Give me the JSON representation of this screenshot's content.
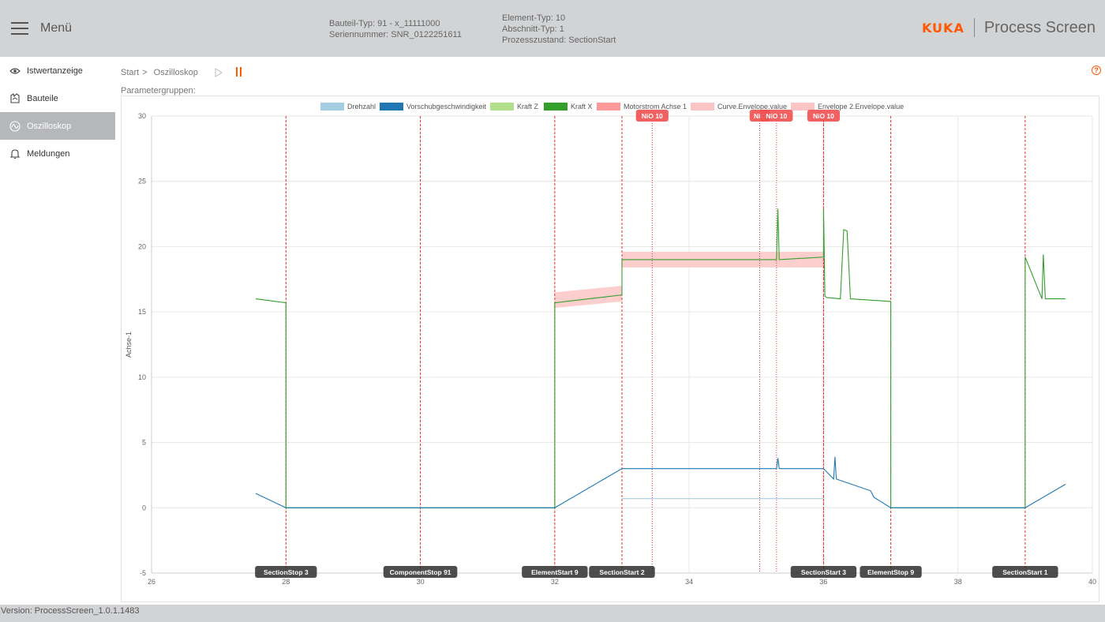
{
  "header": {
    "menu_label": "Menü",
    "info_left": [
      "Bauteil-Typ: 91 - x_11111000",
      "Seriennummer: SNR_0122251611"
    ],
    "info_right": [
      "Element-Typ: 10",
      "Abschnitt-Typ: 1",
      "Prozesszustand: SectionStart"
    ],
    "brand": "KUKA",
    "app_title": "Process Screen"
  },
  "sidebar": {
    "items": [
      {
        "label": "Istwertanzeige",
        "icon": "eye-icon",
        "active": false
      },
      {
        "label": "Bauteile",
        "icon": "part-icon",
        "active": false
      },
      {
        "label": "Oszilloskop",
        "icon": "oscilloscope-icon",
        "active": true
      },
      {
        "label": "Meldungen",
        "icon": "bell-icon",
        "active": false
      }
    ]
  },
  "breadcrumb": {
    "start": "Start",
    "separator": ">",
    "current": "Oszilloskop"
  },
  "param_groups_label": "Parametergruppen:",
  "help_icon": "?",
  "footer": {
    "version": "Version: ProcessScreen_1.0.1.1483"
  },
  "colors": {
    "accent": "#ff5800",
    "header_bg": "#d2d3d5",
    "sidebar_active": "#b6b7ba"
  },
  "chart_data": {
    "type": "line",
    "title": "",
    "xlabel": "",
    "ylabel": "Achse-1",
    "xlim": [
      26,
      40
    ],
    "ylim": [
      -5,
      30
    ],
    "x_ticks": [
      26,
      28,
      30,
      32,
      34,
      36,
      38,
      40
    ],
    "y_ticks": [
      -5,
      0,
      5,
      10,
      15,
      20,
      25,
      30
    ],
    "grid": true,
    "legend_position": "top",
    "legend": [
      {
        "name": "Drehzahl",
        "color": "#a6cee3"
      },
      {
        "name": "Vorschubgeschwindigkeit",
        "color": "#1f78b4"
      },
      {
        "name": "Kraft Z",
        "color": "#b2df8a"
      },
      {
        "name": "Kraft X",
        "color": "#33a02c"
      },
      {
        "name": "Motorstrom Achse 1",
        "color": "#fb9a99"
      },
      {
        "name": "Curve.Envelope.value",
        "color": "#fcc5c5"
      },
      {
        "name": "Envelope 2.Envelope.value",
        "color": "#fcc5c5"
      }
    ],
    "series": [
      {
        "name": "Kraft X",
        "color": "#33a02c",
        "x": [
          27.55,
          28.0,
          28.0,
          32.0,
          32.0,
          33.0,
          33.0,
          35.3,
          35.32,
          35.34,
          36.0,
          36.0,
          36.02,
          36.05,
          36.25,
          36.3,
          36.35,
          36.4,
          37.0,
          37.0,
          39.0,
          39.0,
          39.25,
          39.27,
          39.3,
          39.6
        ],
        "y": [
          16.0,
          15.7,
          0,
          0,
          15.7,
          16.3,
          19.0,
          19.0,
          22.9,
          19.0,
          19.2,
          22.9,
          16.2,
          16.1,
          16.0,
          21.3,
          21.2,
          16.0,
          15.8,
          0,
          0,
          19.2,
          16.0,
          19.4,
          16.0,
          16.0
        ]
      },
      {
        "name": "Vorschubgeschwindigkeit",
        "color": "#1f78b4",
        "x": [
          27.55,
          28.0,
          32.0,
          33.0,
          35.3,
          35.32,
          35.34,
          36.0,
          36.15,
          36.17,
          36.19,
          36.7,
          36.75,
          37.0,
          39.0,
          39.6
        ],
        "y": [
          1.1,
          0,
          0,
          3.0,
          3.0,
          3.8,
          3.0,
          3.0,
          2.2,
          3.9,
          2.2,
          1.3,
          0.8,
          0,
          0,
          1.8
        ]
      },
      {
        "name": "Drehzahl",
        "color": "#a6cee3",
        "x": [
          33.0,
          36.0
        ],
        "y": [
          0.7,
          0.7
        ]
      },
      {
        "name": "Curve.Envelope.value",
        "color": "#fcc5c5",
        "x": [
          32.0,
          33.0,
          33.0,
          36.0
        ],
        "upper": [
          16.5,
          17.0,
          19.6,
          19.6
        ],
        "lower": [
          15.3,
          15.8,
          18.4,
          18.4
        ]
      }
    ],
    "markers": [
      {
        "x": 28.0,
        "label": "SectionStop 3"
      },
      {
        "x": 30.0,
        "label": "ComponentStop 91"
      },
      {
        "x": 32.0,
        "label": "ElementStart 9"
      },
      {
        "x": 33.0,
        "label": "SectionStart 2"
      },
      {
        "x": 36.0,
        "label": "SectionStart 3"
      },
      {
        "x": 37.0,
        "label": "ElementStop 9"
      },
      {
        "x": 39.0,
        "label": "SectionStart 1"
      }
    ],
    "nio_markers": [
      {
        "x": 33.45,
        "label": "NiO 10"
      },
      {
        "x": 35.05,
        "label": "NiO"
      },
      {
        "x": 35.3,
        "label": "NiO 10"
      },
      {
        "x": 36.0,
        "label": "NiO 10"
      }
    ]
  }
}
